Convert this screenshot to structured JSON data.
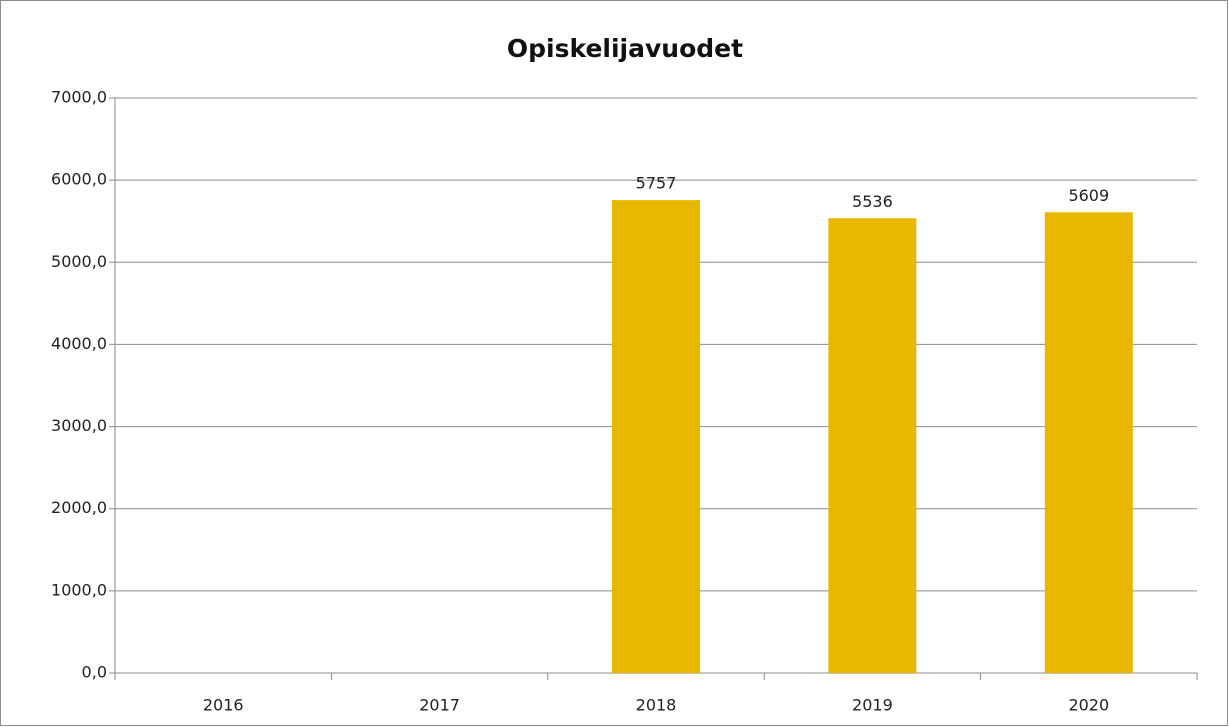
{
  "chart_data": {
    "type": "bar",
    "title": "Opiskelijavuodet",
    "categories": [
      "2016",
      "2017",
      "2018",
      "2019",
      "2020"
    ],
    "values": [
      null,
      null,
      5757,
      5536,
      5609
    ],
    "color": "#e8b800",
    "ylim": [
      0,
      7000
    ],
    "yticks": [
      {
        "value": 0,
        "label": "0,0"
      },
      {
        "value": 1000,
        "label": "1000,0"
      },
      {
        "value": 2000,
        "label": "2000,0"
      },
      {
        "value": 3000,
        "label": "3000,0"
      },
      {
        "value": 4000,
        "label": "4000,0"
      },
      {
        "value": 5000,
        "label": "5000,0"
      },
      {
        "value": 6000,
        "label": "6000,0"
      },
      {
        "value": 7000,
        "label": "7000,0"
      }
    ],
    "grid": true
  }
}
